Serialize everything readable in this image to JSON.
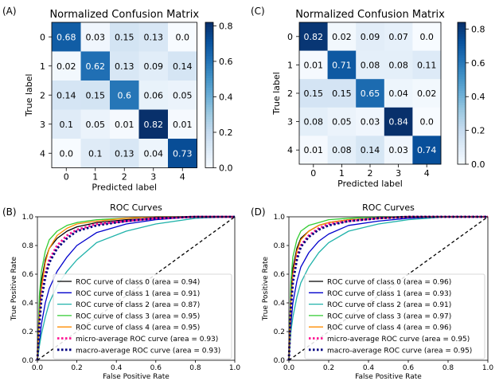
{
  "chart_data": [
    {
      "type": "heatmap",
      "panel_label": "(A)",
      "title": "Normalized Confusion Matrix",
      "xlabel": "Predicted label",
      "ylabel": "True label",
      "x_categories": [
        "0",
        "1",
        "2",
        "3",
        "4"
      ],
      "y_categories": [
        "0",
        "1",
        "2",
        "3",
        "4"
      ],
      "cells": [
        [
          "0.68",
          "0.03",
          "0.15",
          "0.13",
          "0.0"
        ],
        [
          "0.02",
          "0.62",
          "0.13",
          "0.09",
          "0.14"
        ],
        [
          "0.14",
          "0.15",
          "0.6",
          "0.06",
          "0.05"
        ],
        [
          "0.1",
          "0.05",
          "0.01",
          "0.82",
          "0.01"
        ],
        [
          "0.0",
          "0.1",
          "0.13",
          "0.04",
          "0.73"
        ]
      ],
      "colorbar": {
        "min": 0.0,
        "max": 0.82,
        "ticks": [
          "0.0",
          "0.2",
          "0.4",
          "0.6",
          "0.8"
        ],
        "tick_values": [
          0,
          0.2,
          0.4,
          0.6,
          0.8
        ]
      },
      "colormap": [
        "#f7fbff",
        "#deebf7",
        "#c6dbef",
        "#9ecae1",
        "#6baed6",
        "#4292c6",
        "#2171b5",
        "#08519c",
        "#08306b"
      ]
    },
    {
      "type": "heatmap",
      "panel_label": "(C)",
      "title": "Normalized Confusion Matrix",
      "xlabel": "Predicted label",
      "ylabel": "True label",
      "x_categories": [
        "0",
        "1",
        "2",
        "3",
        "4"
      ],
      "y_categories": [
        "0",
        "1",
        "2",
        "3",
        "4"
      ],
      "cells": [
        [
          "0.82",
          "0.02",
          "0.09",
          "0.07",
          "0.0"
        ],
        [
          "0.01",
          "0.71",
          "0.08",
          "0.08",
          "0.11"
        ],
        [
          "0.15",
          "0.15",
          "0.65",
          "0.04",
          "0.02"
        ],
        [
          "0.08",
          "0.05",
          "0.03",
          "0.84",
          "0.0"
        ],
        [
          "0.01",
          "0.08",
          "0.14",
          "0.03",
          "0.74"
        ]
      ],
      "colorbar": {
        "min": 0.0,
        "max": 0.84,
        "ticks": [
          "0.0",
          "0.2",
          "0.4",
          "0.6",
          "0.8"
        ],
        "tick_values": [
          0,
          0.2,
          0.4,
          0.6,
          0.8
        ]
      },
      "colormap": [
        "#f7fbff",
        "#deebf7",
        "#c6dbef",
        "#9ecae1",
        "#6baed6",
        "#4292c6",
        "#2171b5",
        "#08519c",
        "#08306b"
      ]
    },
    {
      "type": "line",
      "panel_label": "(B)",
      "title": "ROC Curves",
      "xlabel": "False Positive Rate",
      "ylabel": "True Positive Rate",
      "xlim": [
        0.0,
        1.0
      ],
      "ylim": [
        0.0,
        1.0
      ],
      "xticks": [
        "0.0",
        "0.2",
        "0.4",
        "0.6",
        "0.8",
        "1.0"
      ],
      "yticks": [
        "0.0",
        "0.2",
        "0.4",
        "0.6",
        "0.8",
        "1.0"
      ],
      "legend_position": "lower-right",
      "chance_line": {
        "x": [
          0,
          1
        ],
        "y": [
          0,
          1
        ],
        "color": "#000000",
        "style": "dashed"
      },
      "series": [
        {
          "name": "ROC curve of class 0 (area = 0.94)",
          "color": "#000000",
          "style": "solid",
          "x": [
            0,
            0.01,
            0.02,
            0.04,
            0.06,
            0.1,
            0.15,
            0.2,
            0.3,
            0.45,
            0.6,
            0.8,
            1.0
          ],
          "y": [
            0,
            0.35,
            0.55,
            0.7,
            0.78,
            0.85,
            0.9,
            0.93,
            0.96,
            0.98,
            0.99,
            1.0,
            1.0
          ]
        },
        {
          "name": "ROC curve of class 1 (area = 0.91)",
          "color": "#0000cc",
          "style": "solid",
          "x": [
            0,
            0.01,
            0.02,
            0.04,
            0.06,
            0.1,
            0.15,
            0.2,
            0.3,
            0.45,
            0.6,
            0.8,
            1.0
          ],
          "y": [
            0,
            0.12,
            0.25,
            0.4,
            0.5,
            0.62,
            0.72,
            0.8,
            0.89,
            0.95,
            0.98,
            1.0,
            1.0
          ]
        },
        {
          "name": "ROC curve of class 2 (area = 0.87)",
          "color": "#20b2aa",
          "style": "solid",
          "x": [
            0,
            0.01,
            0.02,
            0.04,
            0.06,
            0.1,
            0.15,
            0.2,
            0.3,
            0.45,
            0.6,
            0.8,
            1.0
          ],
          "y": [
            0,
            0.1,
            0.18,
            0.3,
            0.4,
            0.52,
            0.62,
            0.7,
            0.82,
            0.9,
            0.95,
            0.99,
            1.0
          ]
        },
        {
          "name": "ROC curve of class 3 (area = 0.95)",
          "color": "#33cc33",
          "style": "solid",
          "x": [
            0,
            0.01,
            0.02,
            0.04,
            0.06,
            0.1,
            0.15,
            0.2,
            0.3,
            0.45,
            0.6,
            0.8,
            1.0
          ],
          "y": [
            0,
            0.45,
            0.62,
            0.76,
            0.84,
            0.9,
            0.94,
            0.96,
            0.98,
            0.99,
            1.0,
            1.0,
            1.0
          ]
        },
        {
          "name": "ROC curve of class 4 (area = 0.95)",
          "color": "#ff8c00",
          "style": "solid",
          "x": [
            0,
            0.01,
            0.02,
            0.04,
            0.06,
            0.1,
            0.15,
            0.2,
            0.3,
            0.45,
            0.6,
            0.8,
            1.0
          ],
          "y": [
            0,
            0.3,
            0.5,
            0.68,
            0.78,
            0.87,
            0.92,
            0.95,
            0.97,
            0.99,
            1.0,
            1.0,
            1.0
          ]
        },
        {
          "name": "micro-average ROC curve (area = 0.93)",
          "color": "#ff1493",
          "style": "dotted",
          "x": [
            0,
            0.01,
            0.02,
            0.04,
            0.06,
            0.1,
            0.15,
            0.2,
            0.3,
            0.45,
            0.6,
            0.8,
            1.0
          ],
          "y": [
            0,
            0.28,
            0.45,
            0.6,
            0.7,
            0.8,
            0.87,
            0.91,
            0.95,
            0.97,
            0.99,
            1.0,
            1.0
          ]
        },
        {
          "name": "macro-average ROC curve (area = 0.93)",
          "color": "#000080",
          "style": "dotted",
          "x": [
            0,
            0.01,
            0.02,
            0.04,
            0.06,
            0.1,
            0.15,
            0.2,
            0.3,
            0.45,
            0.6,
            0.8,
            1.0
          ],
          "y": [
            0,
            0.25,
            0.42,
            0.58,
            0.68,
            0.78,
            0.85,
            0.9,
            0.94,
            0.97,
            0.99,
            1.0,
            1.0
          ]
        }
      ]
    },
    {
      "type": "line",
      "panel_label": "(D)",
      "title": "ROC Curves",
      "xlabel": "False Positive Rate",
      "ylabel": "True Positive Rate",
      "xlim": [
        0.0,
        1.0
      ],
      "ylim": [
        0.0,
        1.0
      ],
      "xticks": [
        "0.0",
        "0.2",
        "0.4",
        "0.6",
        "0.8",
        "1.0"
      ],
      "yticks": [
        "0.0",
        "0.2",
        "0.4",
        "0.6",
        "0.8",
        "1.0"
      ],
      "legend_position": "lower-right",
      "chance_line": {
        "x": [
          0,
          1
        ],
        "y": [
          0,
          1
        ],
        "color": "#000000",
        "style": "dashed"
      },
      "series": [
        {
          "name": "ROC curve of class 0 (area = 0.96)",
          "color": "#000000",
          "style": "solid",
          "x": [
            0,
            0.01,
            0.02,
            0.04,
            0.06,
            0.1,
            0.15,
            0.2,
            0.3,
            0.45,
            0.6,
            0.8,
            1.0
          ],
          "y": [
            0,
            0.45,
            0.64,
            0.78,
            0.85,
            0.9,
            0.94,
            0.96,
            0.98,
            0.99,
            1.0,
            1.0,
            1.0
          ]
        },
        {
          "name": "ROC curve of class 1 (area = 0.93)",
          "color": "#0000cc",
          "style": "solid",
          "x": [
            0,
            0.01,
            0.02,
            0.04,
            0.06,
            0.1,
            0.15,
            0.2,
            0.3,
            0.45,
            0.6,
            0.8,
            1.0
          ],
          "y": [
            0,
            0.25,
            0.4,
            0.55,
            0.65,
            0.75,
            0.83,
            0.88,
            0.94,
            0.97,
            0.99,
            1.0,
            1.0
          ]
        },
        {
          "name": "ROC curve of class 2 (area = 0.91)",
          "color": "#20b2aa",
          "style": "solid",
          "x": [
            0,
            0.01,
            0.02,
            0.04,
            0.06,
            0.1,
            0.15,
            0.2,
            0.3,
            0.45,
            0.6,
            0.8,
            1.0
          ],
          "y": [
            0,
            0.2,
            0.3,
            0.44,
            0.54,
            0.65,
            0.75,
            0.82,
            0.9,
            0.95,
            0.98,
            1.0,
            1.0
          ]
        },
        {
          "name": "ROC curve of class 3 (area = 0.97)",
          "color": "#33cc33",
          "style": "solid",
          "x": [
            0,
            0.01,
            0.02,
            0.04,
            0.06,
            0.1,
            0.15,
            0.2,
            0.3,
            0.45,
            0.6,
            0.8,
            1.0
          ],
          "y": [
            0,
            0.55,
            0.72,
            0.84,
            0.9,
            0.94,
            0.96,
            0.98,
            0.99,
            1.0,
            1.0,
            1.0,
            1.0
          ]
        },
        {
          "name": "ROC curve of class 4 (area = 0.96)",
          "color": "#ff8c00",
          "style": "solid",
          "x": [
            0,
            0.01,
            0.02,
            0.04,
            0.06,
            0.1,
            0.15,
            0.2,
            0.3,
            0.45,
            0.6,
            0.8,
            1.0
          ],
          "y": [
            0,
            0.4,
            0.6,
            0.76,
            0.84,
            0.9,
            0.94,
            0.96,
            0.98,
            0.99,
            1.0,
            1.0,
            1.0
          ]
        },
        {
          "name": "micro-average ROC curve (area = 0.95)",
          "color": "#ff1493",
          "style": "dotted",
          "x": [
            0,
            0.01,
            0.02,
            0.04,
            0.06,
            0.1,
            0.15,
            0.2,
            0.3,
            0.45,
            0.6,
            0.8,
            1.0
          ],
          "y": [
            0,
            0.38,
            0.56,
            0.72,
            0.8,
            0.87,
            0.92,
            0.95,
            0.97,
            0.99,
            1.0,
            1.0,
            1.0
          ]
        },
        {
          "name": "macro-average ROC curve (area = 0.95)",
          "color": "#000080",
          "style": "dotted",
          "x": [
            0,
            0.01,
            0.02,
            0.04,
            0.06,
            0.1,
            0.15,
            0.2,
            0.3,
            0.45,
            0.6,
            0.8,
            1.0
          ],
          "y": [
            0,
            0.36,
            0.54,
            0.7,
            0.79,
            0.86,
            0.91,
            0.94,
            0.97,
            0.99,
            1.0,
            1.0,
            1.0
          ]
        }
      ]
    }
  ]
}
